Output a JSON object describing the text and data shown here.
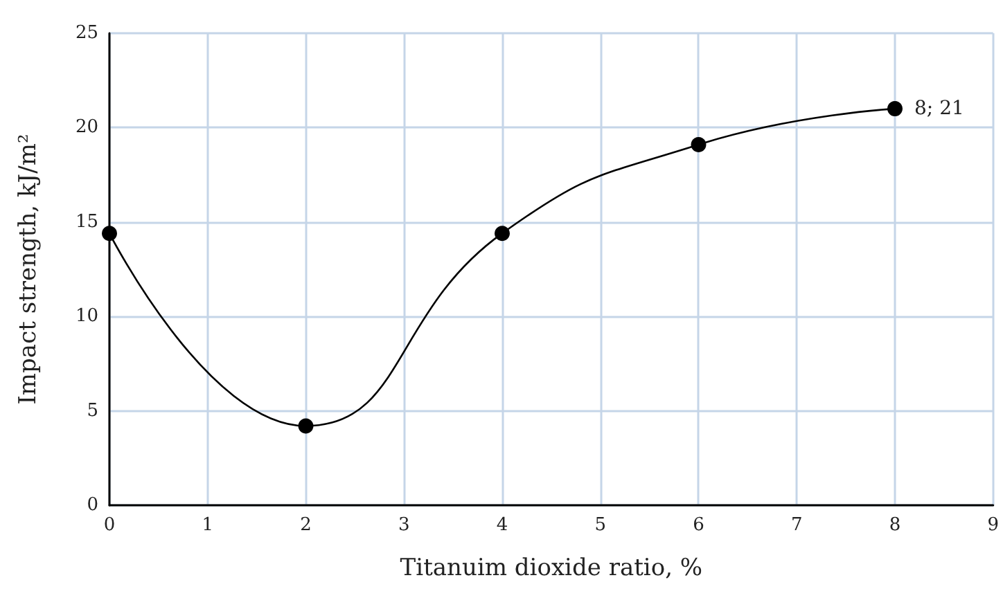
{
  "chart_data": {
    "type": "line",
    "xlabel": "Titanuim dioxide ratio, %",
    "ylabel": "Impact strength, kJ/m²",
    "x": [
      0,
      2,
      4,
      6,
      8
    ],
    "series": [
      {
        "color": "#000000",
        "values": [
          14.4,
          4.2,
          14.4,
          19.1,
          21
        ]
      }
    ],
    "xlim": [
      0,
      9
    ],
    "xticks": [
      0,
      1,
      2,
      3,
      4,
      5,
      6,
      7,
      8,
      9
    ],
    "ylim": [
      0,
      25
    ],
    "yticks": [
      0,
      5,
      10,
      15,
      20,
      25
    ],
    "grid": true,
    "marker": "circle",
    "line_style": "solid",
    "annotations": [
      {
        "text": "8; 21",
        "x": 8,
        "y": 21
      }
    ]
  }
}
